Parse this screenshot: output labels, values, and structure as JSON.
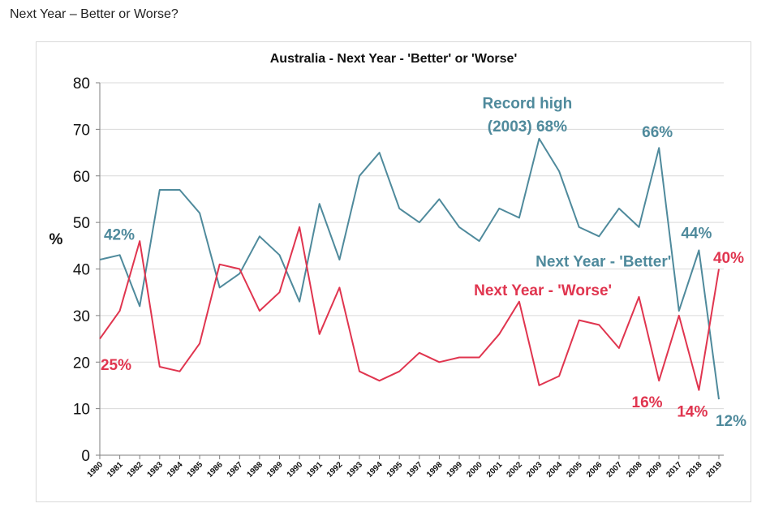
{
  "page": {
    "heading": "Next Year – Better or Worse?"
  },
  "colors": {
    "better": "#4f8a9c",
    "worse": "#e0354f",
    "grid": "#d9d9d9",
    "axis": "#7f7f7f"
  },
  "chart_data": {
    "type": "line",
    "title": "Australia - Next Year - 'Better' or 'Worse'",
    "xlabel": "",
    "ylabel": "%",
    "ylim": [
      0,
      80
    ],
    "yticks": [
      0,
      10,
      20,
      30,
      40,
      50,
      60,
      70,
      80
    ],
    "grid": true,
    "categories": [
      "1980",
      "1981",
      "1982",
      "1983",
      "1984",
      "1985",
      "1986",
      "1987",
      "1988",
      "1989",
      "1990",
      "1991",
      "1992",
      "1993",
      "1994",
      "1995",
      "1997",
      "1998",
      "1999",
      "2000",
      "2001",
      "2002",
      "2003",
      "2004",
      "2005",
      "2006",
      "2007",
      "2008",
      "2009",
      "2017",
      "2018",
      "2019"
    ],
    "series": [
      {
        "name": "Next Year - 'Better'",
        "color": "#4f8a9c",
        "values": [
          42,
          43,
          32,
          57,
          57,
          52,
          36,
          39,
          47,
          43,
          33,
          54,
          42,
          60,
          65,
          53,
          50,
          55,
          49,
          46,
          53,
          51,
          68,
          61,
          49,
          47,
          53,
          49,
          66,
          31,
          44,
          12
        ]
      },
      {
        "name": "Next Year - 'Worse'",
        "color": "#e0354f",
        "values": [
          25,
          31,
          46,
          19,
          18,
          24,
          41,
          40,
          31,
          35,
          49,
          26,
          36,
          18,
          16,
          18,
          22,
          20,
          21,
          21,
          26,
          33,
          15,
          17,
          29,
          28,
          23,
          34,
          16,
          30,
          14,
          40
        ]
      }
    ],
    "annotations": [
      {
        "id": "record-high-line1",
        "text": "Record high",
        "series": "better"
      },
      {
        "id": "record-high-line2",
        "text": "(2003) 68%",
        "series": "better"
      },
      {
        "id": "better-1980",
        "text": "42%",
        "series": "better"
      },
      {
        "id": "better-2009",
        "text": "66%",
        "series": "better"
      },
      {
        "id": "better-2018",
        "text": "44%",
        "series": "better"
      },
      {
        "id": "better-2019",
        "text": "12%",
        "series": "better"
      },
      {
        "id": "better-series-label",
        "text": "Next Year - 'Better'",
        "series": "better"
      },
      {
        "id": "worse-series-label",
        "text": "Next Year - 'Worse'",
        "series": "worse"
      },
      {
        "id": "worse-1980",
        "text": "25%",
        "series": "worse"
      },
      {
        "id": "worse-2008",
        "text": "16%",
        "series": "worse"
      },
      {
        "id": "worse-2018",
        "text": "14%",
        "series": "worse"
      },
      {
        "id": "worse-2019",
        "text": "40%",
        "series": "worse"
      }
    ]
  }
}
